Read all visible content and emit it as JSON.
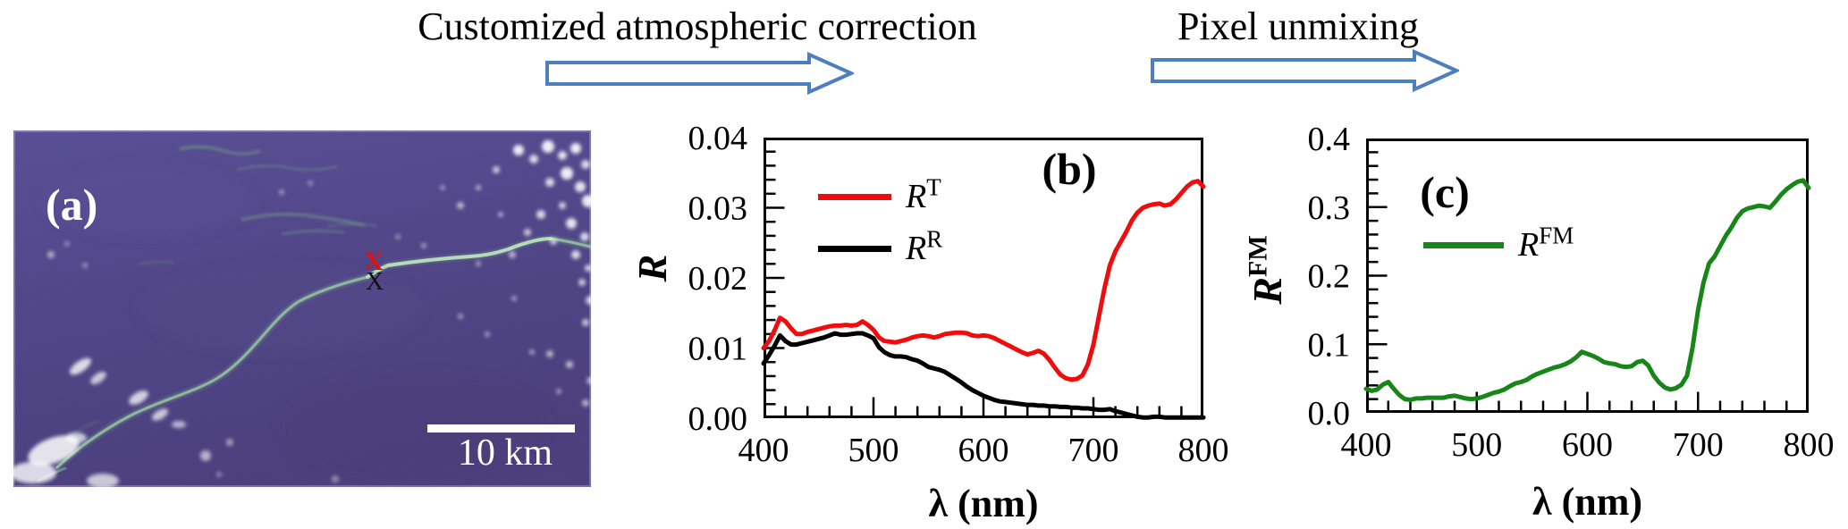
{
  "header": {
    "step1_label": "Customized atmospheric correction",
    "step2_label": "Pixel unmixing",
    "arrow_color": "#4d7ebf",
    "arrow_fill": "#ffffff"
  },
  "panel_a": {
    "label": "(a)",
    "scale_bar_label": "10 km",
    "marker_red": "X",
    "marker_black": "X",
    "marker_red_color": "#e01010",
    "marker_black_color": "#111111",
    "ocean_color": "#4e4386",
    "slick_color": "#8fc79a",
    "cloud_color": "#ffffff"
  },
  "chart_data": [
    {
      "type": "line",
      "panel_label": "(b)",
      "xlabel": "λ (nm)",
      "ylabel": {
        "base": "R",
        "sup": ""
      },
      "xlim": [
        400,
        800
      ],
      "ylim": [
        0,
        0.04
      ],
      "x_ticks": [
        {
          "v": 400,
          "label": "400"
        },
        {
          "v": 500,
          "label": "500"
        },
        {
          "v": 600,
          "label": "600"
        },
        {
          "v": 700,
          "label": "700"
        },
        {
          "v": 800,
          "label": "800"
        }
      ],
      "y_ticks": [
        {
          "v": 0,
          "label": "0.00"
        },
        {
          "v": 0.01,
          "label": "0.01"
        },
        {
          "v": 0.02,
          "label": "0.02"
        },
        {
          "v": 0.03,
          "label": "0.03"
        },
        {
          "v": 0.04,
          "label": "0.04"
        }
      ],
      "x_minor_step": 20,
      "y_minor_step": 0.002,
      "grid": false,
      "legend_position": "upper-left",
      "legend": [
        {
          "base": "R",
          "sup": "T",
          "color": "#ee0c0c"
        },
        {
          "base": "R",
          "sup": "R",
          "color": "#000000"
        }
      ],
      "x_values": [
        400,
        405,
        410,
        415,
        420,
        425,
        430,
        435,
        440,
        445,
        450,
        455,
        460,
        465,
        470,
        475,
        480,
        485,
        490,
        495,
        500,
        505,
        510,
        515,
        520,
        525,
        530,
        535,
        540,
        545,
        550,
        555,
        560,
        565,
        570,
        575,
        580,
        585,
        590,
        595,
        600,
        605,
        610,
        615,
        620,
        625,
        630,
        635,
        640,
        645,
        650,
        655,
        660,
        665,
        670,
        675,
        680,
        685,
        690,
        695,
        700,
        705,
        710,
        715,
        720,
        725,
        730,
        735,
        740,
        745,
        750,
        755,
        760,
        765,
        770,
        775,
        780,
        785,
        790,
        795,
        800
      ],
      "series": [
        {
          "name": "R_T",
          "color": "#ee0c0c",
          "y": [
            0.01,
            0.011,
            0.0125,
            0.0143,
            0.0138,
            0.0128,
            0.012,
            0.012,
            0.0123,
            0.0125,
            0.0127,
            0.0129,
            0.0131,
            0.0132,
            0.0132,
            0.0133,
            0.0132,
            0.0133,
            0.0138,
            0.0133,
            0.0126,
            0.0115,
            0.011,
            0.0109,
            0.0108,
            0.011,
            0.0112,
            0.0115,
            0.0117,
            0.0118,
            0.0117,
            0.0115,
            0.0117,
            0.012,
            0.0121,
            0.0122,
            0.0122,
            0.0121,
            0.0118,
            0.0117,
            0.0118,
            0.0117,
            0.0114,
            0.011,
            0.0106,
            0.0102,
            0.0098,
            0.0094,
            0.0091,
            0.0093,
            0.0096,
            0.0092,
            0.0083,
            0.0072,
            0.0062,
            0.0057,
            0.0055,
            0.0056,
            0.0061,
            0.0077,
            0.0105,
            0.0145,
            0.0185,
            0.0218,
            0.0238,
            0.0252,
            0.0266,
            0.0282,
            0.0293,
            0.03,
            0.0303,
            0.0305,
            0.0306,
            0.0303,
            0.0305,
            0.0312,
            0.0321,
            0.033,
            0.0336,
            0.0338,
            0.033
          ]
        },
        {
          "name": "R_R",
          "color": "#000000",
          "y": [
            0.0078,
            0.009,
            0.0103,
            0.0118,
            0.011,
            0.0105,
            0.0105,
            0.0107,
            0.0109,
            0.0111,
            0.0113,
            0.0115,
            0.0118,
            0.0121,
            0.0119,
            0.0119,
            0.012,
            0.0121,
            0.0121,
            0.0118,
            0.0114,
            0.0101,
            0.0094,
            0.009,
            0.0088,
            0.0088,
            0.0087,
            0.0084,
            0.0082,
            0.0078,
            0.0073,
            0.0071,
            0.0069,
            0.0066,
            0.0061,
            0.0056,
            0.0051,
            0.0045,
            0.004,
            0.0036,
            0.0032,
            0.0029,
            0.0026,
            0.0024,
            0.0023,
            0.0022,
            0.0021,
            0.002,
            0.0019,
            0.0019,
            0.0018,
            0.0018,
            0.0017,
            0.0017,
            0.0016,
            0.0016,
            0.0015,
            0.0015,
            0.0014,
            0.0014,
            0.0013,
            0.0012,
            0.0012,
            0.0013,
            0.001,
            0.0008,
            0.0006,
            0.0004,
            0.0002,
            0.0001,
            0.0001,
            0.0002,
            0.0002,
            0.0001,
            0.0001,
            0.0001,
            0.0001,
            0.0001,
            0.0001,
            0.0001,
            0.0001
          ]
        }
      ]
    },
    {
      "type": "line",
      "panel_label": "(c)",
      "xlabel": "λ (nm)",
      "ylabel": {
        "base": "R",
        "sup": "FM"
      },
      "xlim": [
        400,
        800
      ],
      "ylim": [
        0,
        0.4
      ],
      "x_ticks": [
        {
          "v": 400,
          "label": "400"
        },
        {
          "v": 500,
          "label": "500"
        },
        {
          "v": 600,
          "label": "600"
        },
        {
          "v": 700,
          "label": "700"
        },
        {
          "v": 800,
          "label": "800"
        }
      ],
      "y_ticks": [
        {
          "v": 0,
          "label": "0.0"
        },
        {
          "v": 0.1,
          "label": "0.1"
        },
        {
          "v": 0.2,
          "label": "0.2"
        },
        {
          "v": 0.3,
          "label": "0.3"
        },
        {
          "v": 0.4,
          "label": "0.4"
        }
      ],
      "x_minor_step": 20,
      "y_minor_step": 0.02,
      "grid": false,
      "legend_position": "upper-left",
      "legend": [
        {
          "base": "R",
          "sup": "FM",
          "color": "#178517"
        }
      ],
      "x_values": [
        400,
        405,
        410,
        415,
        420,
        425,
        430,
        435,
        440,
        445,
        450,
        455,
        460,
        465,
        470,
        475,
        480,
        485,
        490,
        495,
        500,
        505,
        510,
        515,
        520,
        525,
        530,
        535,
        540,
        545,
        550,
        555,
        560,
        565,
        570,
        575,
        580,
        585,
        590,
        595,
        600,
        605,
        610,
        615,
        620,
        625,
        630,
        635,
        640,
        645,
        650,
        655,
        660,
        665,
        670,
        675,
        680,
        685,
        690,
        695,
        700,
        705,
        710,
        715,
        720,
        725,
        730,
        735,
        740,
        745,
        750,
        755,
        760,
        765,
        770,
        775,
        780,
        785,
        790,
        795,
        800
      ],
      "series": [
        {
          "name": "R_FM",
          "color": "#178517",
          "y": [
            0.035,
            0.032,
            0.034,
            0.041,
            0.045,
            0.035,
            0.026,
            0.02,
            0.019,
            0.021,
            0.021,
            0.022,
            0.022,
            0.022,
            0.022,
            0.024,
            0.025,
            0.023,
            0.021,
            0.02,
            0.021,
            0.023,
            0.026,
            0.029,
            0.031,
            0.034,
            0.039,
            0.043,
            0.045,
            0.048,
            0.053,
            0.057,
            0.06,
            0.063,
            0.066,
            0.068,
            0.071,
            0.075,
            0.081,
            0.089,
            0.086,
            0.083,
            0.079,
            0.074,
            0.072,
            0.071,
            0.068,
            0.067,
            0.068,
            0.074,
            0.076,
            0.069,
            0.054,
            0.044,
            0.037,
            0.034,
            0.036,
            0.041,
            0.054,
            0.095,
            0.15,
            0.19,
            0.218,
            0.228,
            0.243,
            0.258,
            0.27,
            0.284,
            0.294,
            0.298,
            0.3,
            0.302,
            0.301,
            0.299,
            0.308,
            0.318,
            0.326,
            0.332,
            0.337,
            0.339,
            0.328
          ]
        }
      ]
    }
  ]
}
